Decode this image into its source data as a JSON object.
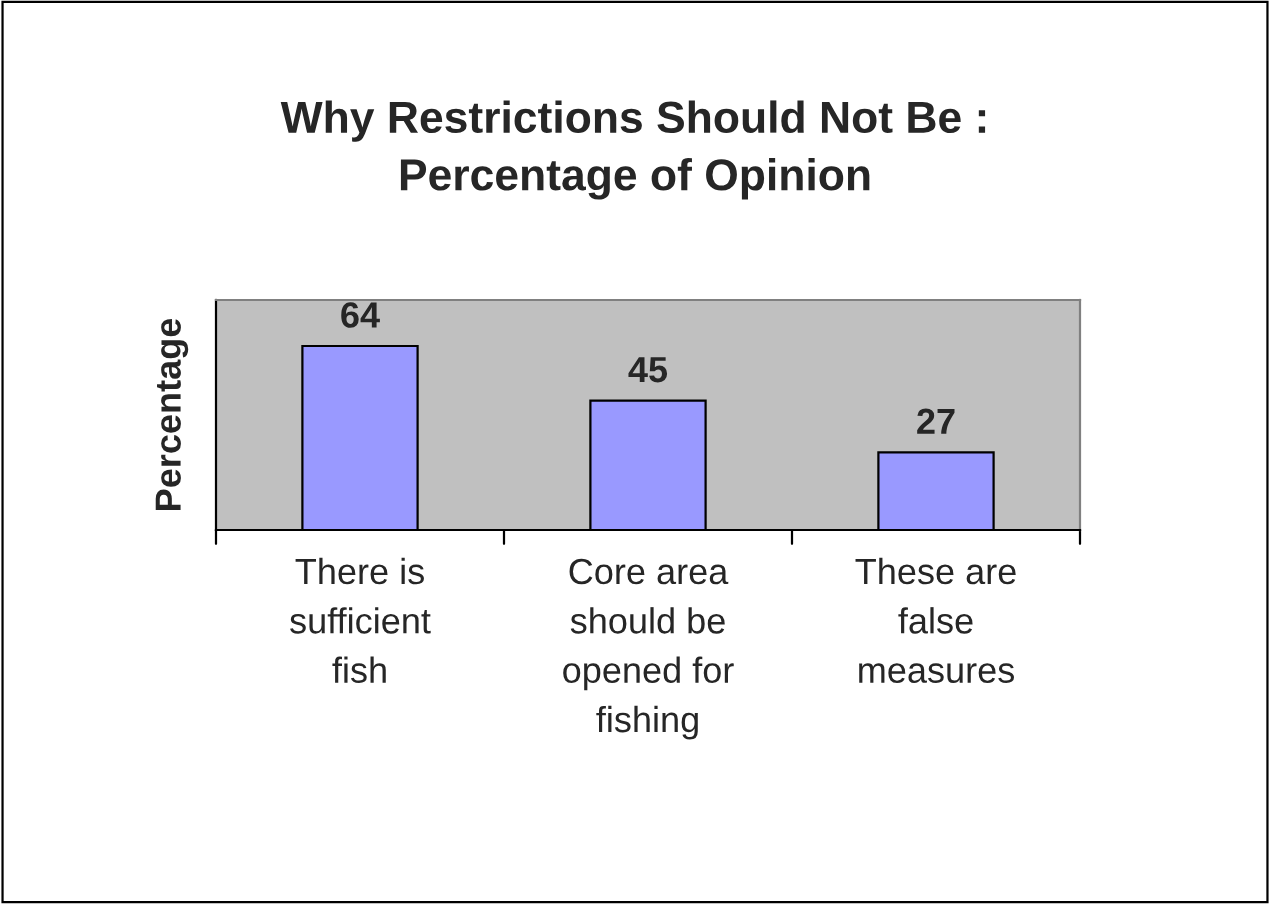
{
  "chart_data": {
    "type": "bar",
    "title": "Why Restrictions Should Not Be :\nPercentage of Opinion",
    "ylabel": "Percentage",
    "categories": [
      "There is\nsufficient\nfish",
      "Core area\nshould be\nopened for\nfishing",
      "These are\nfalse\nmeasures"
    ],
    "values": [
      64,
      45,
      27
    ],
    "color": "#9999ff",
    "ylim": [
      0,
      80
    ],
    "data_labels": true,
    "grid": false,
    "legend": false
  }
}
